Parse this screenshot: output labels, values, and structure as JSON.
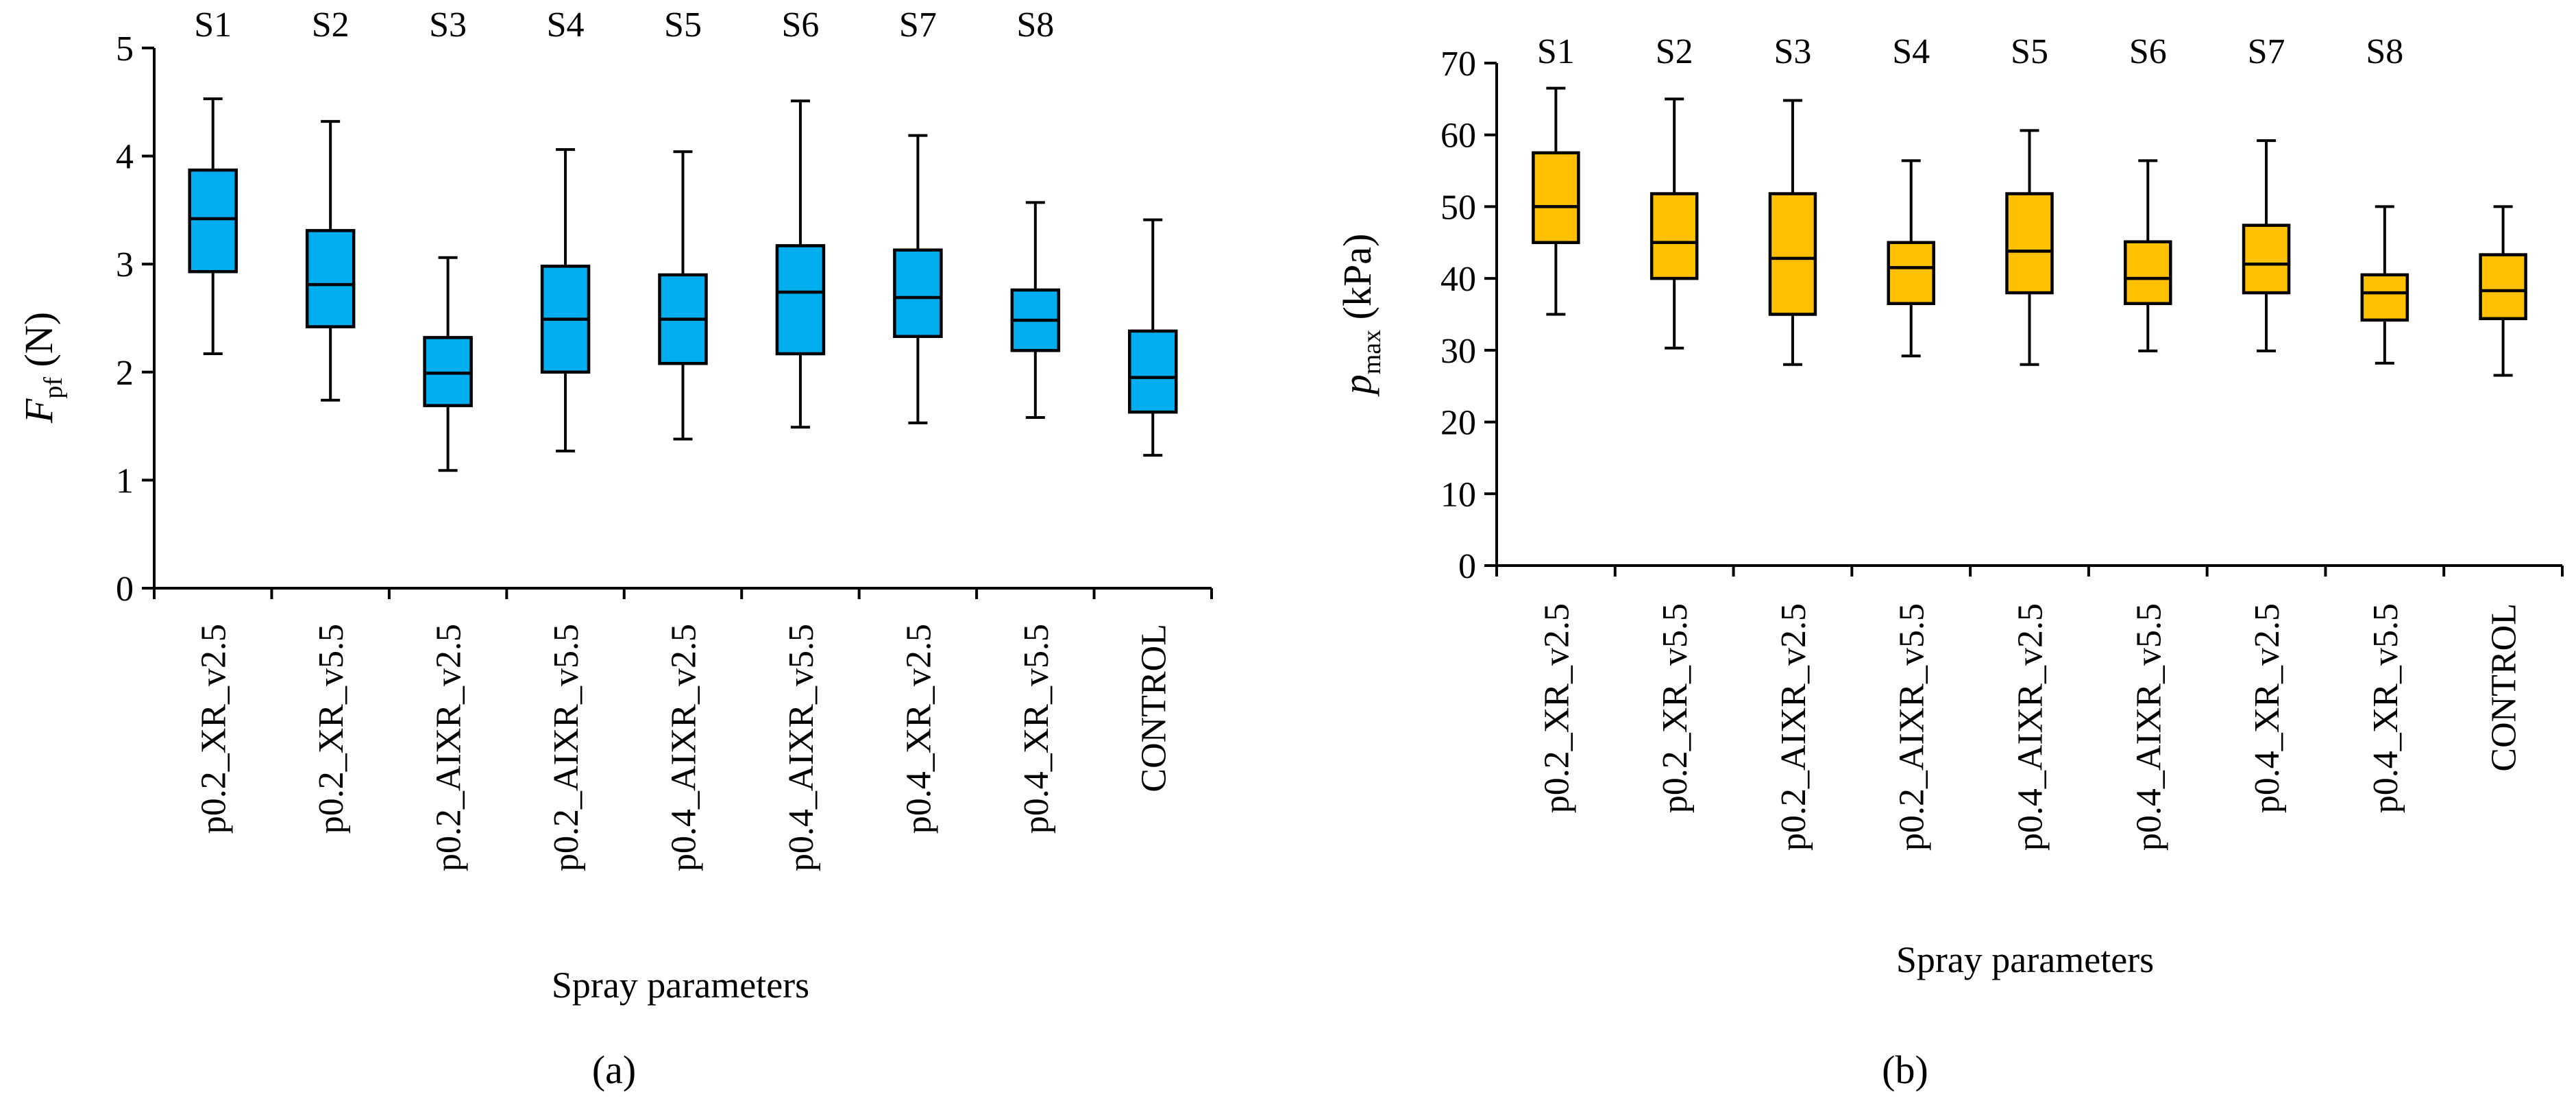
{
  "chart_data": [
    {
      "type": "box",
      "panel_label": "(a)",
      "ylabel_main": "F",
      "ylabel_sub": "pf",
      "ylabel_unit": " (N)",
      "xlabel": "Spray parameters",
      "ylim": [
        0,
        5
      ],
      "yticks": [
        0,
        1,
        2,
        3,
        4,
        5
      ],
      "fill_color": "#00AEEF",
      "categories": [
        "p0.2_XR_v2.5",
        "p0.2_XR_v5.5",
        "p0.2_AIXR_v2.5",
        "p0.2_AIXR_v5.5",
        "p0.4_AIXR_v2.5",
        "p0.4_AIXR_v5.5",
        "p0.4_XR_v2.5",
        "p0.4_XR_v5.5",
        "CONTROL"
      ],
      "series_labels": [
        "S1",
        "S2",
        "S3",
        "S4",
        "S5",
        "S6",
        "S7",
        "S8",
        ""
      ],
      "boxes": [
        {
          "min": 2.17,
          "q1": 2.93,
          "median": 3.42,
          "q3": 3.87,
          "max": 4.53
        },
        {
          "min": 1.74,
          "q1": 2.42,
          "median": 2.81,
          "q3": 3.31,
          "max": 4.32
        },
        {
          "min": 1.09,
          "q1": 1.69,
          "median": 1.99,
          "q3": 2.32,
          "max": 3.06
        },
        {
          "min": 1.27,
          "q1": 2.0,
          "median": 2.49,
          "q3": 2.98,
          "max": 4.06
        },
        {
          "min": 1.38,
          "q1": 2.08,
          "median": 2.49,
          "q3": 2.9,
          "max": 4.04
        },
        {
          "min": 1.49,
          "q1": 2.17,
          "median": 2.74,
          "q3": 3.17,
          "max": 4.51
        },
        {
          "min": 1.53,
          "q1": 2.33,
          "median": 2.69,
          "q3": 3.13,
          "max": 4.19
        },
        {
          "min": 1.58,
          "q1": 2.2,
          "median": 2.48,
          "q3": 2.76,
          "max": 3.57
        },
        {
          "min": 1.23,
          "q1": 1.63,
          "median": 1.95,
          "q3": 2.38,
          "max": 3.41
        }
      ]
    },
    {
      "type": "box",
      "panel_label": "(b)",
      "ylabel_main": "p",
      "ylabel_sub": "max",
      "ylabel_unit": " (kPa)",
      "xlabel": "Spray parameters",
      "ylim": [
        0,
        70
      ],
      "yticks": [
        0,
        10,
        20,
        30,
        40,
        50,
        60,
        70
      ],
      "fill_color": "#FFC000",
      "categories": [
        "p0.2_XR_v2.5",
        "p0.2_XR_v5.5",
        "p0.2_AIXR_v2.5",
        "p0.2_AIXR_v5.5",
        "p0.4_AIXR_v2.5",
        "p0.4_AIXR_v5.5",
        "p0.4_XR_v2.5",
        "p0.4_XR_v5.5",
        "CONTROL"
      ],
      "series_labels": [
        "S1",
        "S2",
        "S3",
        "S4",
        "S5",
        "S6",
        "S7",
        "S8",
        ""
      ],
      "boxes": [
        {
          "min": 35.0,
          "q1": 45.0,
          "median": 50.0,
          "q3": 57.5,
          "max": 66.5
        },
        {
          "min": 30.3,
          "q1": 40.0,
          "median": 45.0,
          "q3": 51.8,
          "max": 65.0
        },
        {
          "min": 28.0,
          "q1": 35.0,
          "median": 42.8,
          "q3": 51.8,
          "max": 64.8
        },
        {
          "min": 29.2,
          "q1": 36.5,
          "median": 41.5,
          "q3": 45.0,
          "max": 56.4
        },
        {
          "min": 28.0,
          "q1": 38.0,
          "median": 43.8,
          "q3": 51.8,
          "max": 60.6
        },
        {
          "min": 29.9,
          "q1": 36.5,
          "median": 40.0,
          "q3": 45.1,
          "max": 56.4
        },
        {
          "min": 29.9,
          "q1": 38.0,
          "median": 42.0,
          "q3": 47.4,
          "max": 59.2
        },
        {
          "min": 28.2,
          "q1": 34.2,
          "median": 38.0,
          "q3": 40.5,
          "max": 50.0
        },
        {
          "min": 26.5,
          "q1": 34.4,
          "median": 38.3,
          "q3": 43.3,
          "max": 50.0
        }
      ]
    }
  ]
}
